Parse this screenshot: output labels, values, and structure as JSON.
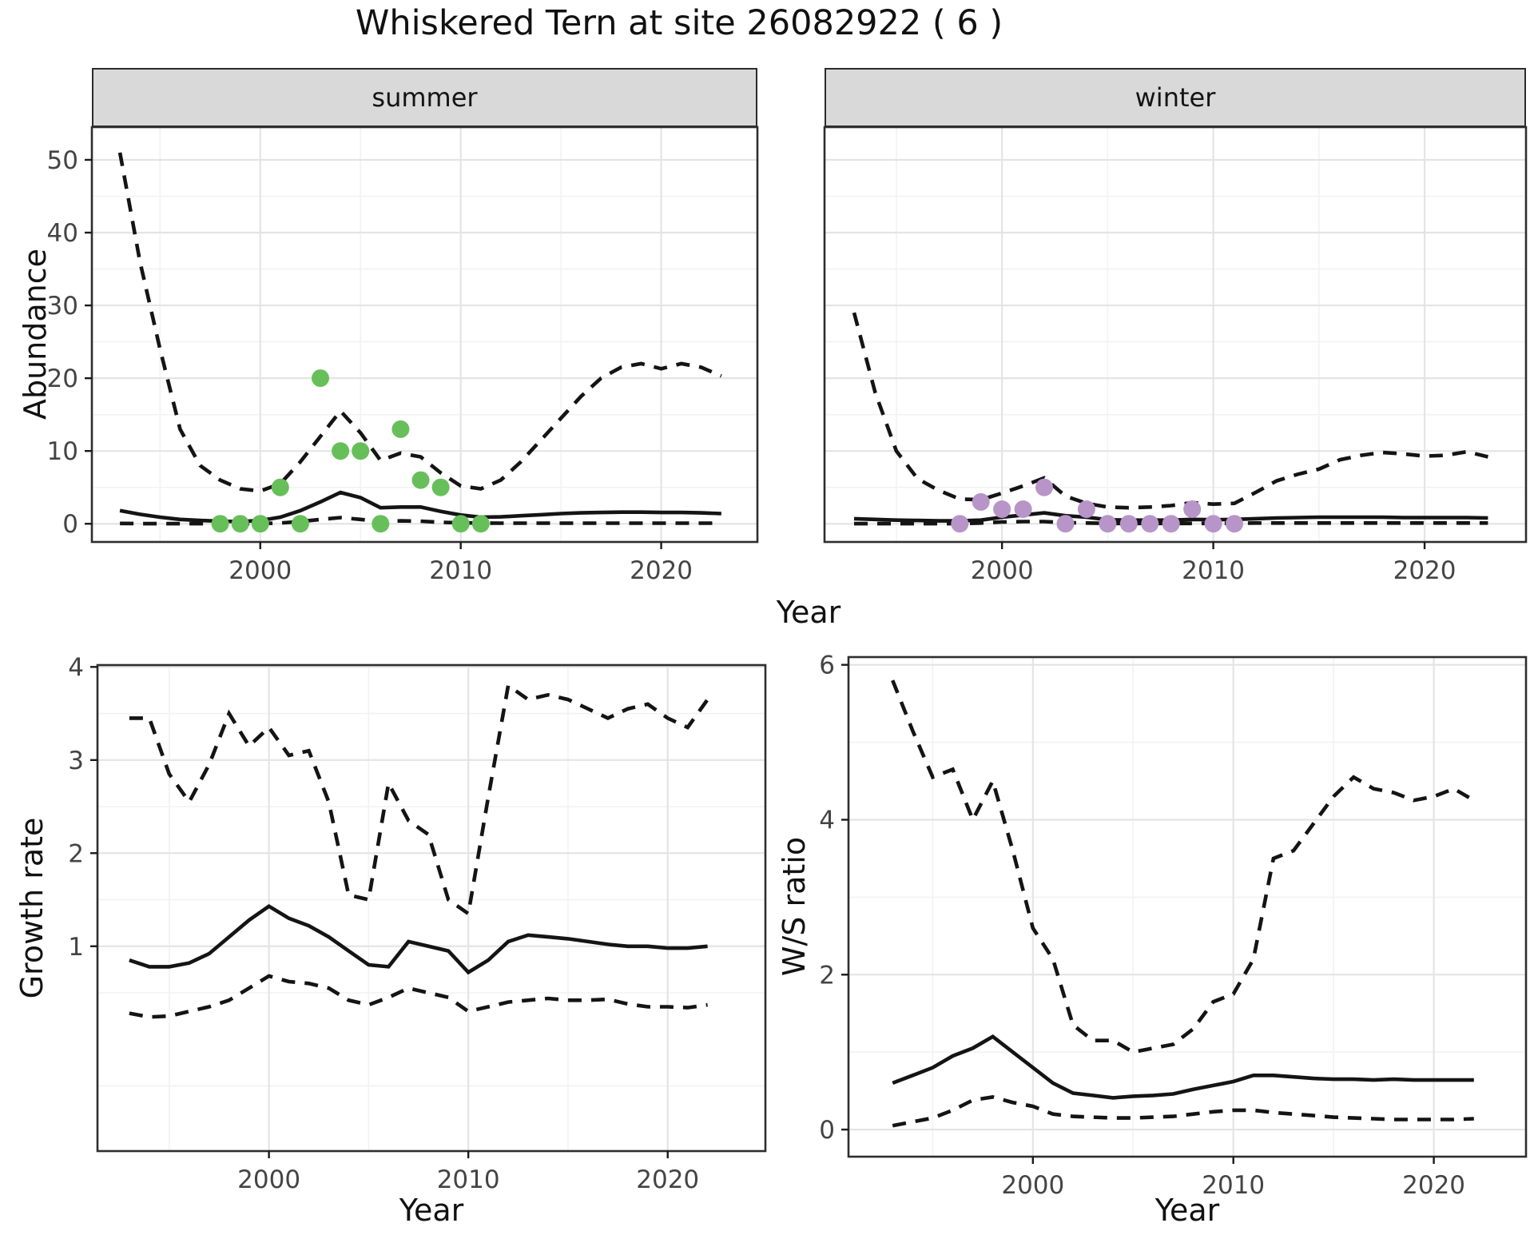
{
  "title": "Whiskered Tern at site 26082922 ( 6 )",
  "shared_x_label": "Year",
  "facet_labels": {
    "summer": "summer",
    "winter": "winter"
  },
  "colors": {
    "summer_points": "#67bf5a",
    "winter_points": "#b795c8",
    "line": "#141414",
    "strip_background": "#d9d9d9",
    "panel_border": "#2e2e2e",
    "grid_major": "#e4e4e4",
    "grid_minor": "#f2f2f2",
    "tick_mark": "#1a1a1a",
    "tick_text": "#444444"
  },
  "chart_data": [
    {
      "id": "abundance_summer",
      "type": "line",
      "facet_label": "summer",
      "ylabel": "Abundance",
      "xlabel": "Year",
      "x_range": [
        1991.6,
        2024.8
      ],
      "y_range": [
        -2.5,
        54.5
      ],
      "x_ticks": [
        2000,
        2010,
        2020
      ],
      "x_minor_ticks": [
        1995,
        2005,
        2015
      ],
      "y_ticks": [
        0,
        10,
        20,
        30,
        40,
        50
      ],
      "y_minor_ticks": [
        5,
        15,
        25,
        35,
        45
      ],
      "y_axis_visible": true,
      "years": [
        1993,
        1994,
        1995,
        1996,
        1997,
        1998,
        1999,
        2000,
        2001,
        2002,
        2003,
        2004,
        2005,
        2006,
        2007,
        2008,
        2009,
        2010,
        2011,
        2012,
        2013,
        2014,
        2015,
        2016,
        2017,
        2018,
        2019,
        2020,
        2021,
        2022,
        2023
      ],
      "series": [
        {
          "name": "upper_ci",
          "style": "dashed",
          "values": [
            51,
            36,
            24,
            13,
            8,
            6,
            4.8,
            4.5,
            5.5,
            8.5,
            12,
            15.5,
            12.5,
            8.7,
            9.7,
            9.2,
            7,
            5.2,
            4.8,
            6,
            8.5,
            11.5,
            14.5,
            17.5,
            20,
            21.5,
            22,
            21.3,
            22,
            21.5,
            20.3
          ]
        },
        {
          "name": "mean",
          "style": "solid",
          "values": [
            1.8,
            1.3,
            0.9,
            0.6,
            0.45,
            0.35,
            0.3,
            0.45,
            0.9,
            1.8,
            3.0,
            4.3,
            3.6,
            2.2,
            2.3,
            2.3,
            1.7,
            1.2,
            0.9,
            0.95,
            1.1,
            1.25,
            1.4,
            1.5,
            1.55,
            1.6,
            1.6,
            1.55,
            1.55,
            1.5,
            1.4
          ]
        },
        {
          "name": "lower_ci",
          "style": "dashed",
          "values": [
            0.05,
            0.03,
            0.02,
            0.02,
            0.02,
            0.02,
            0.02,
            0.03,
            0.1,
            0.3,
            0.6,
            0.85,
            0.6,
            0.3,
            0.4,
            0.35,
            0.2,
            0.12,
            0.1,
            0.08,
            0.08,
            0.08,
            0.08,
            0.08,
            0.08,
            0.08,
            0.08,
            0.08,
            0.08,
            0.08,
            0.08
          ]
        }
      ],
      "points": {
        "name": "observed_counts",
        "color": "#67bf5a",
        "years": [
          1998,
          1999,
          2000,
          2001,
          2002,
          2003,
          2004,
          2005,
          2006,
          2007,
          2008,
          2009,
          2010,
          2011
        ],
        "values": [
          0,
          0,
          0,
          5,
          0,
          20,
          10,
          10,
          0,
          13,
          6,
          5,
          0,
          0
        ]
      }
    },
    {
      "id": "abundance_winter",
      "type": "line",
      "facet_label": "winter",
      "ylabel": "Abundance",
      "xlabel": "Year",
      "x_range": [
        1991.6,
        2024.8
      ],
      "y_range": [
        -2.5,
        54.5
      ],
      "x_ticks": [
        2000,
        2010,
        2020
      ],
      "x_minor_ticks": [
        1995,
        2005,
        2015
      ],
      "y_ticks": [
        0,
        10,
        20,
        30,
        40,
        50
      ],
      "y_minor_ticks": [
        5,
        15,
        25,
        35,
        45
      ],
      "y_axis_visible": false,
      "years": [
        1993,
        1994,
        1995,
        1996,
        1997,
        1998,
        1999,
        2000,
        2001,
        2002,
        2003,
        2004,
        2005,
        2006,
        2007,
        2008,
        2009,
        2010,
        2011,
        2012,
        2013,
        2014,
        2015,
        2016,
        2017,
        2018,
        2019,
        2020,
        2021,
        2022,
        2023
      ],
      "series": [
        {
          "name": "upper_ci",
          "style": "dashed",
          "values": [
            29,
            18,
            10,
            6.2,
            4.6,
            3.4,
            3.3,
            4.2,
            5.2,
            6.3,
            3.8,
            2.8,
            2.3,
            2.2,
            2.3,
            2.5,
            2.9,
            2.7,
            2.8,
            4.3,
            5.9,
            6.8,
            7.5,
            8.8,
            9.4,
            9.8,
            9.6,
            9.3,
            9.4,
            9.9,
            9.2
          ]
        },
        {
          "name": "mean",
          "style": "solid",
          "values": [
            0.7,
            0.6,
            0.5,
            0.45,
            0.4,
            0.4,
            0.5,
            0.9,
            1.2,
            1.5,
            1.1,
            0.9,
            0.55,
            0.5,
            0.5,
            0.5,
            0.6,
            0.55,
            0.6,
            0.7,
            0.8,
            0.85,
            0.9,
            0.9,
            0.9,
            0.9,
            0.85,
            0.85,
            0.85,
            0.85,
            0.8
          ]
        },
        {
          "name": "lower_ci",
          "style": "dashed",
          "values": [
            0.02,
            0.02,
            0.02,
            0.02,
            0.02,
            0.02,
            0.1,
            0.25,
            0.3,
            0.3,
            0.15,
            0.1,
            0.05,
            0.05,
            0.05,
            0.05,
            0.05,
            0.05,
            0.05,
            0.1,
            0.1,
            0.1,
            0.1,
            0.1,
            0.1,
            0.1,
            0.1,
            0.1,
            0.1,
            0.1,
            0.1
          ]
        }
      ],
      "points": {
        "name": "observed_counts",
        "color": "#b795c8",
        "years": [
          1998,
          1999,
          2000,
          2001,
          2002,
          2003,
          2004,
          2005,
          2006,
          2007,
          2008,
          2009,
          2010,
          2011
        ],
        "values": [
          0,
          3,
          2,
          2,
          5,
          0,
          2,
          0,
          0,
          0,
          0,
          2,
          0,
          0
        ]
      }
    },
    {
      "id": "growth_rate",
      "type": "line",
      "ylabel": "Growth rate",
      "xlabel": "Year",
      "x_range": [
        1991.4,
        2024.9
      ],
      "y_range": [
        -1.2,
        4.02
      ],
      "x_ticks": [
        2000,
        2010,
        2020
      ],
      "x_minor_ticks": [
        1995,
        2005,
        2015
      ],
      "y_ticks": [
        1,
        2,
        3,
        4
      ],
      "y_minor_ticks": [
        -0.5,
        0.5,
        1.5,
        2.5,
        3.5
      ],
      "y_axis_visible": true,
      "years": [
        1993,
        1994,
        1995,
        1996,
        1997,
        1998,
        1999,
        2000,
        2001,
        2002,
        2003,
        2004,
        2005,
        2006,
        2007,
        2008,
        2009,
        2010,
        2011,
        2012,
        2013,
        2014,
        2015,
        2016,
        2017,
        2018,
        2019,
        2020,
        2021,
        2022
      ],
      "series": [
        {
          "name": "upper_ci",
          "style": "dashed",
          "values": [
            3.45,
            3.45,
            2.85,
            2.55,
            2.95,
            3.5,
            3.15,
            3.35,
            3.05,
            3.1,
            2.55,
            1.55,
            1.5,
            2.75,
            2.35,
            2.2,
            1.5,
            1.35,
            2.6,
            3.8,
            3.65,
            3.7,
            3.65,
            3.55,
            3.45,
            3.55,
            3.6,
            3.45,
            3.35,
            3.65
          ]
        },
        {
          "name": "mean",
          "style": "solid",
          "values": [
            0.85,
            0.78,
            0.78,
            0.82,
            0.92,
            1.1,
            1.28,
            1.43,
            1.3,
            1.22,
            1.1,
            0.95,
            0.8,
            0.78,
            1.05,
            1.0,
            0.95,
            0.72,
            0.85,
            1.05,
            1.12,
            1.1,
            1.08,
            1.05,
            1.02,
            1.0,
            1.0,
            0.98,
            0.98,
            1.0
          ]
        },
        {
          "name": "lower_ci",
          "style": "dashed",
          "values": [
            0.28,
            0.24,
            0.25,
            0.3,
            0.35,
            0.42,
            0.55,
            0.68,
            0.62,
            0.6,
            0.55,
            0.42,
            0.37,
            0.45,
            0.55,
            0.5,
            0.45,
            0.3,
            0.35,
            0.4,
            0.42,
            0.44,
            0.42,
            0.42,
            0.43,
            0.38,
            0.35,
            0.35,
            0.34,
            0.37
          ]
        }
      ]
    },
    {
      "id": "ws_ratio",
      "type": "line",
      "ylabel": "W/S ratio",
      "xlabel": "Year",
      "x_range": [
        1990.8,
        2024.6
      ],
      "y_range": [
        -0.35,
        6.1
      ],
      "x_ticks": [
        2000,
        2010,
        2020
      ],
      "x_minor_ticks": [
        1995,
        2005,
        2015
      ],
      "y_ticks": [
        0,
        2,
        4,
        6
      ],
      "y_minor_ticks": [
        1,
        3,
        5
      ],
      "y_axis_visible": true,
      "years": [
        1993,
        1994,
        1995,
        1996,
        1997,
        1998,
        1999,
        2000,
        2001,
        2002,
        2003,
        2004,
        2005,
        2006,
        2007,
        2008,
        2009,
        2010,
        2011,
        2012,
        2013,
        2014,
        2015,
        2016,
        2017,
        2018,
        2019,
        2020,
        2021,
        2022
      ],
      "series": [
        {
          "name": "upper_ci",
          "style": "dashed",
          "values": [
            5.8,
            5.15,
            4.55,
            4.65,
            4.0,
            4.5,
            3.6,
            2.6,
            2.2,
            1.35,
            1.15,
            1.15,
            1.0,
            1.05,
            1.1,
            1.3,
            1.65,
            1.75,
            2.2,
            3.5,
            3.6,
            3.95,
            4.3,
            4.55,
            4.4,
            4.35,
            4.25,
            4.3,
            4.4,
            4.25
          ]
        },
        {
          "name": "mean",
          "style": "solid",
          "values": [
            0.6,
            0.7,
            0.8,
            0.95,
            1.05,
            1.2,
            1.0,
            0.8,
            0.6,
            0.47,
            0.44,
            0.41,
            0.43,
            0.44,
            0.46,
            0.52,
            0.57,
            0.62,
            0.7,
            0.7,
            0.68,
            0.66,
            0.65,
            0.65,
            0.64,
            0.65,
            0.64,
            0.64,
            0.64,
            0.64
          ]
        },
        {
          "name": "lower_ci",
          "style": "dashed",
          "values": [
            0.05,
            0.1,
            0.15,
            0.25,
            0.38,
            0.42,
            0.35,
            0.3,
            0.2,
            0.17,
            0.16,
            0.15,
            0.15,
            0.16,
            0.17,
            0.2,
            0.23,
            0.25,
            0.25,
            0.22,
            0.2,
            0.18,
            0.16,
            0.15,
            0.14,
            0.13,
            0.13,
            0.13,
            0.13,
            0.14
          ]
        }
      ]
    }
  ]
}
